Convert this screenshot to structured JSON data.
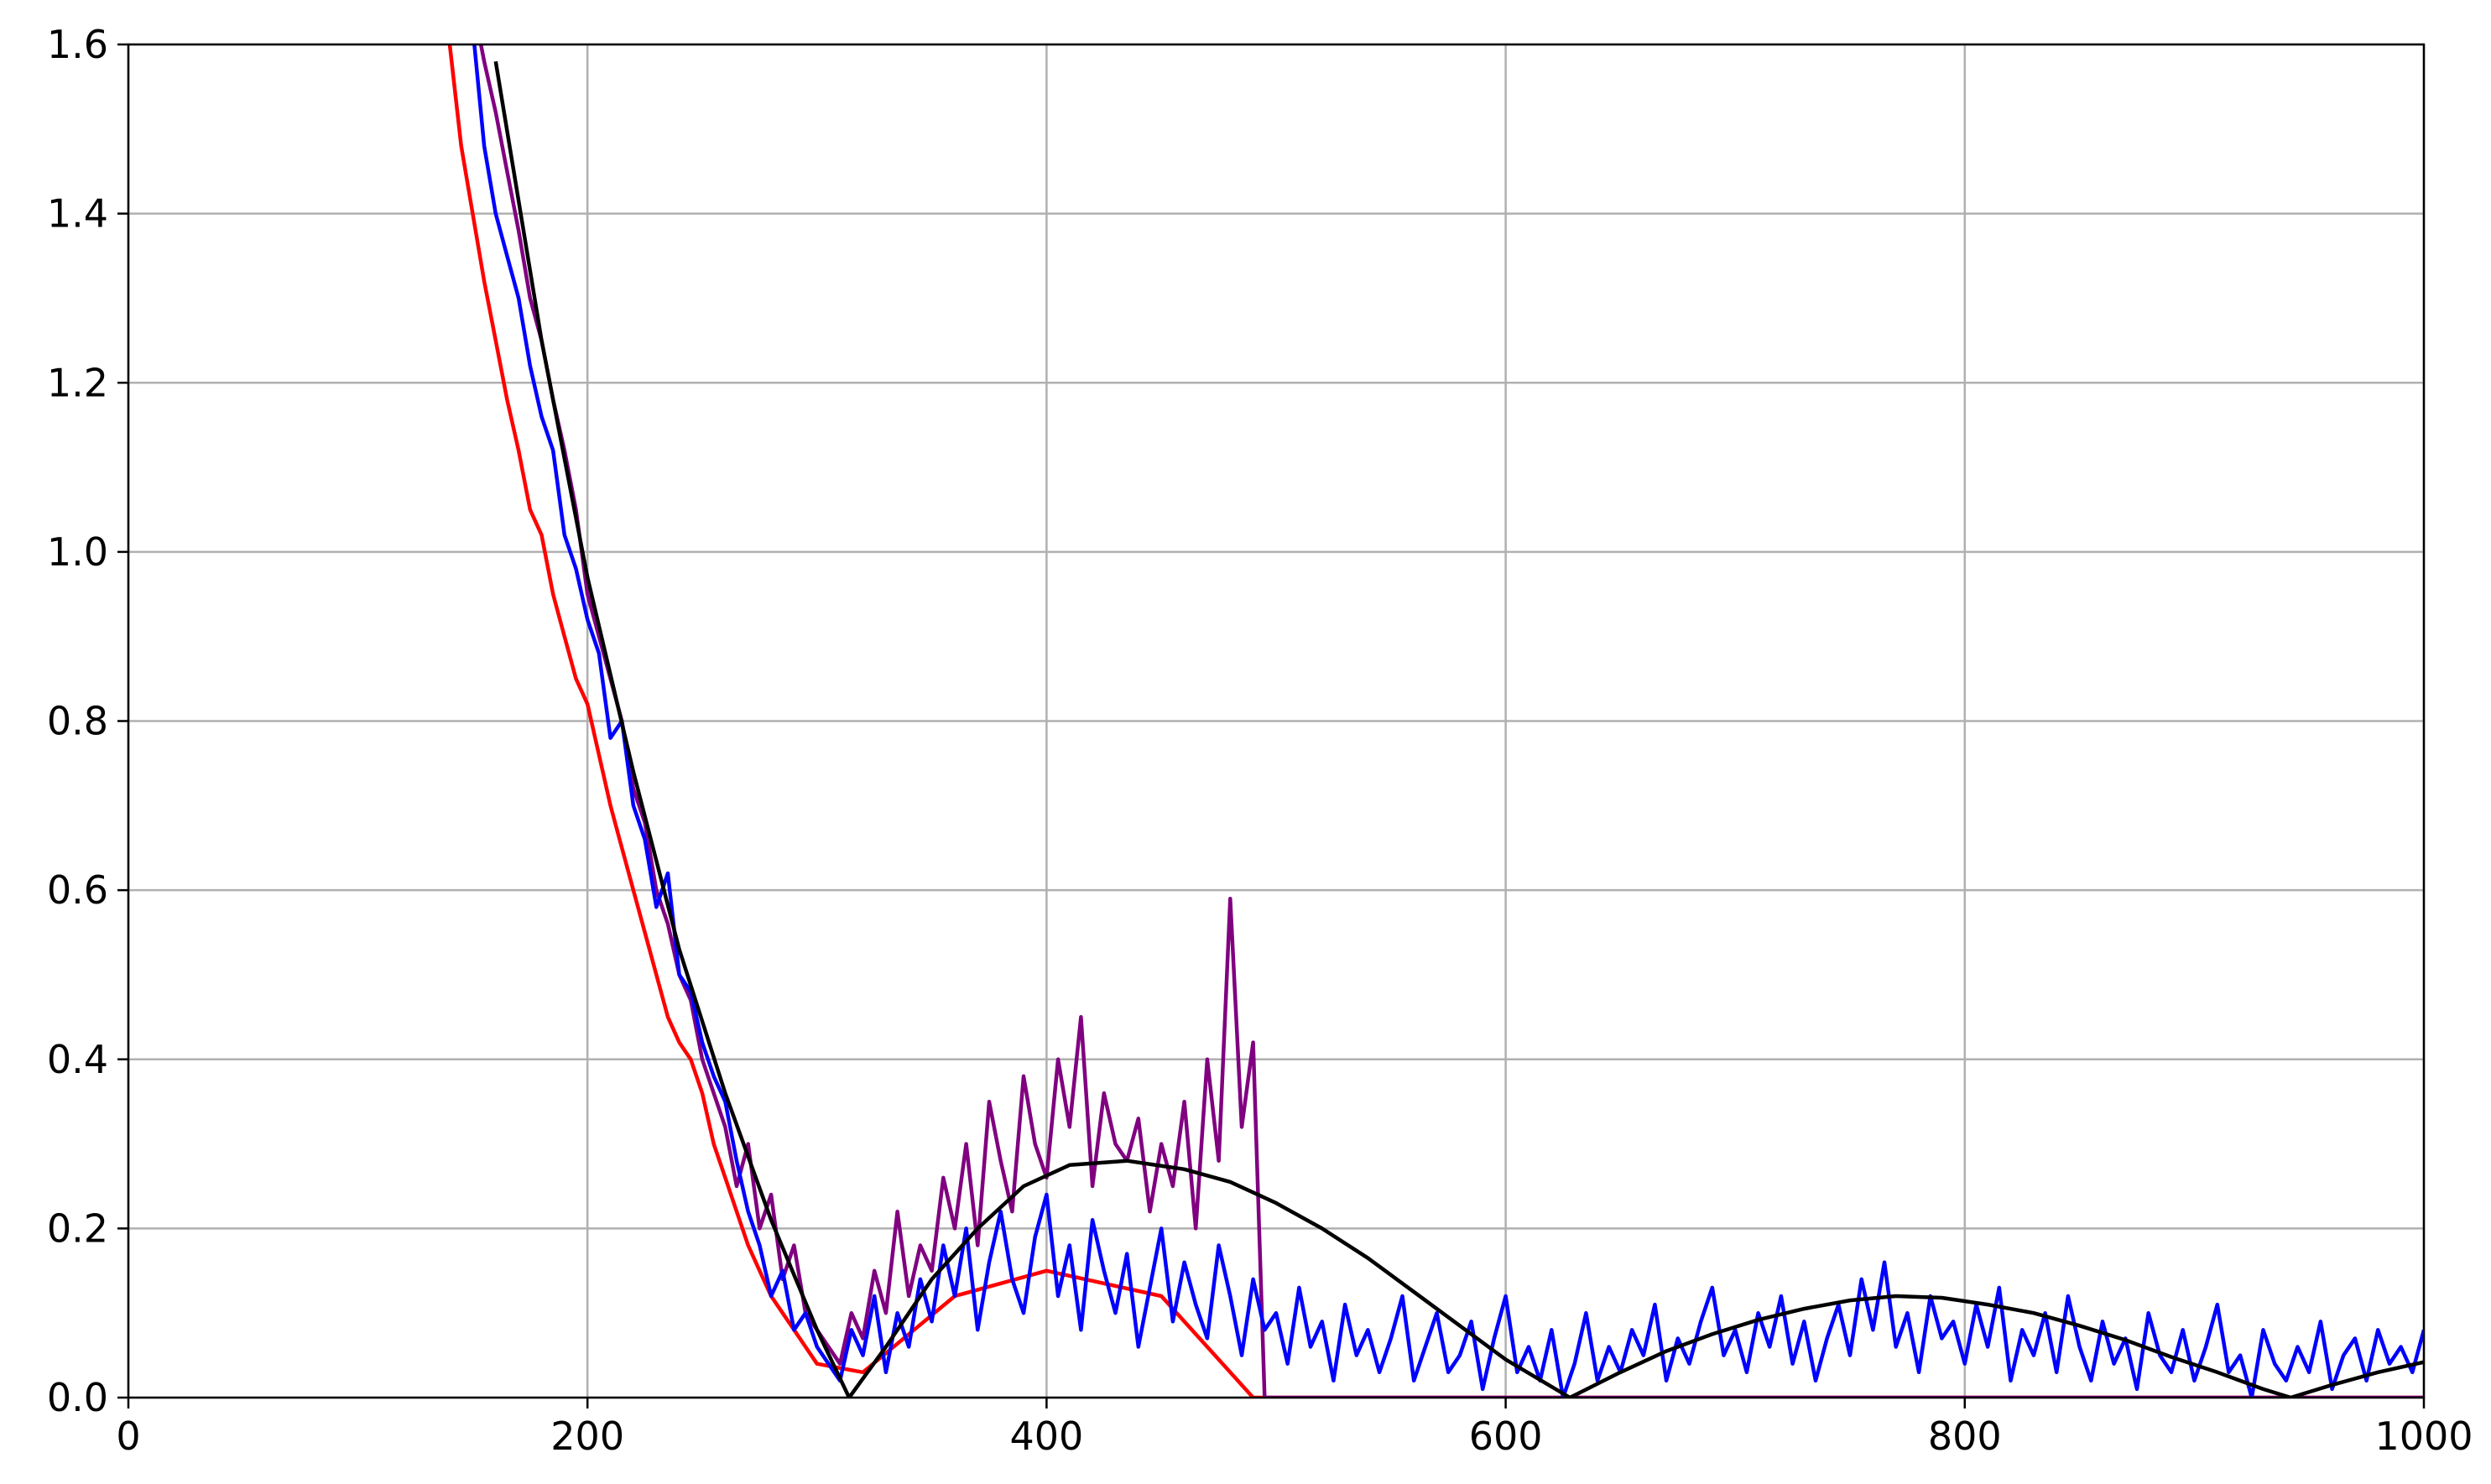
{
  "chart_data": {
    "type": "line",
    "xlim": [
      0,
      1000
    ],
    "xticks": [
      0,
      200,
      400,
      600,
      800,
      1000
    ],
    "ylim": [
      0,
      1.6
    ],
    "yticks": [
      {
        "value": 0,
        "label": "0.0"
      },
      0.2,
      0.4,
      0.6,
      0.8,
      {
        "value": 1,
        "label": "1.0"
      },
      1.2,
      1.4,
      1.6
    ],
    "grid": true,
    "series": [
      {
        "color": "#ff0000",
        "x": [
          140,
          145,
          150,
          155,
          160,
          165,
          170,
          175,
          180,
          185,
          190,
          195,
          200,
          205,
          210,
          215,
          220,
          225,
          230,
          235,
          240,
          245,
          250,
          255,
          260,
          265,
          270,
          275,
          280,
          285,
          290,
          295,
          300,
          320,
          360,
          400,
          450,
          490,
          1000
        ],
        "values": [
          1.6,
          1.48,
          1.4,
          1.32,
          1.25,
          1.18,
          1.12,
          1.05,
          1.02,
          0.95,
          0.9,
          0.85,
          0.82,
          0.76,
          0.7,
          0.65,
          0.6,
          0.55,
          0.5,
          0.45,
          0.42,
          0.4,
          0.36,
          0.3,
          0.26,
          0.22,
          0.18,
          0.15,
          0.12,
          0.1,
          0.08,
          0.06,
          0.04,
          0.03,
          0.12,
          0.15,
          0.12,
          0,
          0
        ]
      },
      {
        "color": "#800080",
        "x": [
          150,
          155,
          160,
          165,
          170,
          175,
          180,
          185,
          190,
          195,
          200,
          205,
          210,
          215,
          220,
          225,
          230,
          235,
          240,
          245,
          250,
          255,
          260,
          265,
          270,
          275,
          280,
          285,
          290,
          295,
          300,
          305,
          310,
          315,
          320,
          325,
          330,
          335,
          340,
          345,
          350,
          355,
          360,
          365,
          370,
          375,
          380,
          385,
          390,
          395,
          400,
          405,
          410,
          415,
          420,
          425,
          430,
          435,
          440,
          445,
          450,
          455,
          460,
          465,
          470,
          475,
          480,
          485,
          490,
          495,
          1000
        ],
        "values": [
          1.65,
          1.58,
          1.52,
          1.45,
          1.38,
          1.3,
          1.25,
          1.18,
          1.12,
          1.05,
          0.95,
          0.9,
          0.85,
          0.8,
          0.72,
          0.68,
          0.6,
          0.56,
          0.5,
          0.47,
          0.4,
          0.36,
          0.32,
          0.25,
          0.3,
          0.2,
          0.24,
          0.14,
          0.18,
          0.1,
          0.08,
          0.06,
          0.04,
          0.1,
          0.07,
          0.15,
          0.1,
          0.22,
          0.12,
          0.18,
          0.15,
          0.26,
          0.2,
          0.3,
          0.18,
          0.35,
          0.28,
          0.22,
          0.38,
          0.3,
          0.26,
          0.4,
          0.32,
          0.45,
          0.25,
          0.36,
          0.3,
          0.28,
          0.33,
          0.22,
          0.3,
          0.25,
          0.35,
          0.2,
          0.4,
          0.28,
          0.59,
          0.32,
          0.42,
          0,
          0
        ]
      },
      {
        "color": "#0000ff",
        "x": [
          150,
          155,
          160,
          165,
          170,
          175,
          180,
          185,
          190,
          195,
          200,
          205,
          210,
          215,
          220,
          225,
          230,
          235,
          240,
          245,
          250,
          255,
          260,
          265,
          270,
          275,
          280,
          285,
          290,
          295,
          300,
          305,
          310,
          315,
          320,
          325,
          330,
          335,
          340,
          345,
          350,
          355,
          360,
          365,
          370,
          375,
          380,
          385,
          390,
          395,
          400,
          405,
          410,
          415,
          420,
          425,
          430,
          435,
          440,
          445,
          450,
          455,
          460,
          465,
          470,
          475,
          480,
          485,
          490,
          495,
          500,
          505,
          510,
          515,
          520,
          525,
          530,
          535,
          540,
          545,
          550,
          555,
          560,
          565,
          570,
          575,
          580,
          585,
          590,
          595,
          600,
          605,
          610,
          615,
          620,
          625,
          630,
          635,
          640,
          645,
          650,
          655,
          660,
          665,
          670,
          675,
          680,
          685,
          690,
          695,
          700,
          705,
          710,
          715,
          720,
          725,
          730,
          735,
          740,
          745,
          750,
          755,
          760,
          765,
          770,
          775,
          780,
          785,
          790,
          795,
          800,
          805,
          810,
          815,
          820,
          825,
          830,
          835,
          840,
          845,
          850,
          855,
          860,
          865,
          870,
          875,
          880,
          885,
          890,
          895,
          900,
          905,
          910,
          915,
          920,
          925,
          930,
          935,
          940,
          945,
          950,
          955,
          960,
          965,
          970,
          975,
          980,
          985,
          990,
          995,
          1000
        ],
        "values": [
          1.62,
          1.48,
          1.4,
          1.35,
          1.3,
          1.22,
          1.16,
          1.12,
          1.02,
          0.98,
          0.92,
          0.88,
          0.78,
          0.8,
          0.7,
          0.66,
          0.58,
          0.62,
          0.5,
          0.48,
          0.42,
          0.38,
          0.35,
          0.28,
          0.22,
          0.18,
          0.12,
          0.15,
          0.08,
          0.1,
          0.06,
          0.04,
          0.02,
          0.08,
          0.05,
          0.12,
          0.03,
          0.1,
          0.06,
          0.14,
          0.09,
          0.18,
          0.12,
          0.2,
          0.08,
          0.16,
          0.22,
          0.14,
          0.1,
          0.19,
          0.24,
          0.12,
          0.18,
          0.08,
          0.21,
          0.15,
          0.1,
          0.17,
          0.06,
          0.13,
          0.2,
          0.09,
          0.16,
          0.11,
          0.07,
          0.18,
          0.12,
          0.05,
          0.14,
          0.08,
          0.1,
          0.04,
          0.13,
          0.06,
          0.09,
          0.02,
          0.11,
          0.05,
          0.08,
          0.03,
          0.07,
          0.12,
          0.02,
          0.06,
          0.1,
          0.03,
          0.05,
          0.09,
          0.01,
          0.07,
          0.12,
          0.03,
          0.06,
          0.02,
          0.08,
          0,
          0.04,
          0.1,
          0.02,
          0.06,
          0.03,
          0.08,
          0.05,
          0.11,
          0.02,
          0.07,
          0.04,
          0.09,
          0.13,
          0.05,
          0.08,
          0.03,
          0.1,
          0.06,
          0.12,
          0.04,
          0.09,
          0.02,
          0.07,
          0.11,
          0.05,
          0.14,
          0.08,
          0.16,
          0.06,
          0.1,
          0.03,
          0.12,
          0.07,
          0.09,
          0.04,
          0.11,
          0.06,
          0.13,
          0.02,
          0.08,
          0.05,
          0.1,
          0.03,
          0.12,
          0.06,
          0.02,
          0.09,
          0.04,
          0.07,
          0.01,
          0.1,
          0.05,
          0.03,
          0.08,
          0.02,
          0.06,
          0.11,
          0.03,
          0.05,
          0,
          0.08,
          0.04,
          0.02,
          0.06,
          0.03,
          0.09,
          0.01,
          0.05,
          0.07,
          0.02,
          0.08,
          0.04,
          0.06,
          0.03,
          0.08
        ]
      },
      {
        "color": "#000000",
        "x": [
          160,
          180,
          200,
          220,
          240,
          260,
          280,
          300,
          314,
          330,
          350,
          370,
          390,
          410,
          435,
          460,
          480,
          500,
          520,
          540,
          560,
          580,
          600,
          628,
          650,
          670,
          690,
          710,
          730,
          750,
          770,
          790,
          810,
          830,
          850,
          870,
          890,
          910,
          930,
          942,
          960,
          980,
          1000
        ],
        "values": [
          1.58,
          1.25,
          0.97,
          0.74,
          0.53,
          0.36,
          0.21,
          0.08,
          0,
          0.06,
          0.14,
          0.2,
          0.25,
          0.275,
          0.28,
          0.27,
          0.255,
          0.23,
          0.2,
          0.165,
          0.125,
          0.085,
          0.045,
          0,
          0.03,
          0.055,
          0.075,
          0.092,
          0.105,
          0.115,
          0.12,
          0.118,
          0.11,
          0.1,
          0.085,
          0.068,
          0.048,
          0.03,
          0.01,
          0,
          0.015,
          0.03,
          0.042
        ]
      }
    ]
  }
}
